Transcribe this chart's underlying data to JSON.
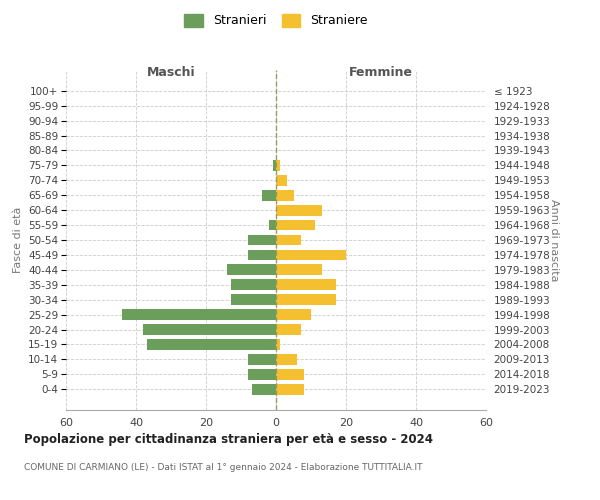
{
  "age_groups": [
    "100+",
    "95-99",
    "90-94",
    "85-89",
    "80-84",
    "75-79",
    "70-74",
    "65-69",
    "60-64",
    "55-59",
    "50-54",
    "45-49",
    "40-44",
    "35-39",
    "30-34",
    "25-29",
    "20-24",
    "15-19",
    "10-14",
    "5-9",
    "0-4"
  ],
  "birth_years": [
    "≤ 1923",
    "1924-1928",
    "1929-1933",
    "1934-1938",
    "1939-1943",
    "1944-1948",
    "1949-1953",
    "1954-1958",
    "1959-1963",
    "1964-1968",
    "1969-1973",
    "1974-1978",
    "1979-1983",
    "1984-1988",
    "1989-1993",
    "1994-1998",
    "1999-2003",
    "2004-2008",
    "2009-2013",
    "2014-2018",
    "2019-2023"
  ],
  "maschi": [
    0,
    0,
    0,
    0,
    0,
    1,
    0,
    4,
    0,
    2,
    8,
    8,
    14,
    13,
    13,
    44,
    38,
    37,
    8,
    8,
    7
  ],
  "femmine": [
    0,
    0,
    0,
    0,
    0,
    1,
    3,
    5,
    13,
    11,
    7,
    20,
    13,
    17,
    17,
    10,
    7,
    1,
    6,
    8,
    8
  ],
  "maschi_color": "#6a9e5a",
  "femmine_color": "#f5c030",
  "bg_color": "#ffffff",
  "grid_color": "#cccccc",
  "title": "Popolazione per cittadinanza straniera per età e sesso - 2024",
  "subtitle": "COMUNE DI CARMIANO (LE) - Dati ISTAT al 1° gennaio 2024 - Elaborazione TUTTITALIA.IT",
  "xlabel_left": "Maschi",
  "xlabel_right": "Femmine",
  "ylabel_left": "Fasce di età",
  "ylabel_right": "Anni di nascita",
  "legend_stranieri": "Stranieri",
  "legend_straniere": "Straniere",
  "xlim": 60
}
